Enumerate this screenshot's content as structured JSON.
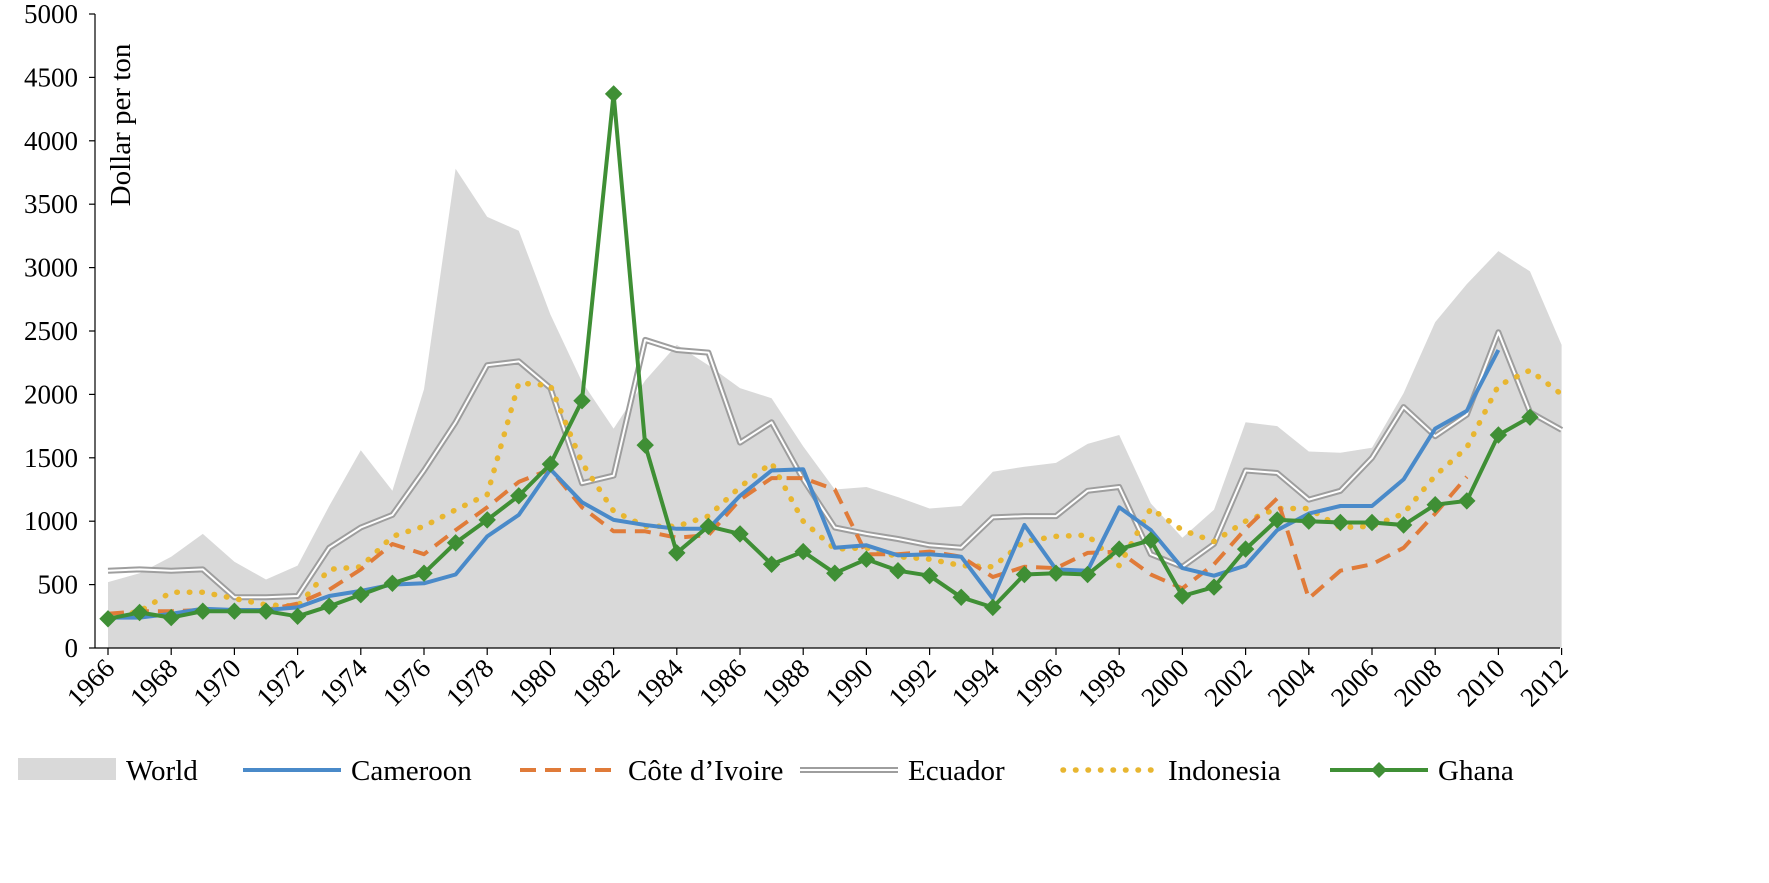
{
  "chart_data": {
    "type": "line",
    "title": "",
    "xlabel": "",
    "ylabel": "Dollar per ton",
    "ylim": [
      0,
      5000
    ],
    "yticks": [
      0,
      500,
      1000,
      1500,
      2000,
      2500,
      3000,
      3500,
      4000,
      4500,
      5000
    ],
    "x": [
      1966,
      1967,
      1968,
      1969,
      1970,
      1971,
      1972,
      1973,
      1974,
      1975,
      1976,
      1977,
      1978,
      1979,
      1980,
      1981,
      1982,
      1983,
      1984,
      1985,
      1986,
      1987,
      1988,
      1989,
      1990,
      1991,
      1992,
      1993,
      1994,
      1995,
      1996,
      1997,
      1998,
      1999,
      2000,
      2001,
      2002,
      2003,
      2004,
      2005,
      2006,
      2007,
      2008,
      2009,
      2010,
      2011,
      2012
    ],
    "xticks": [
      1966,
      1968,
      1970,
      1972,
      1974,
      1976,
      1978,
      1980,
      1982,
      1984,
      1986,
      1988,
      1990,
      1992,
      1994,
      1996,
      1998,
      2000,
      2002,
      2004,
      2006,
      2008,
      2010,
      2012
    ],
    "grid": false,
    "legend_position": "bottom",
    "series": [
      {
        "name": "World",
        "style": "area",
        "color": "#d9d9d9",
        "values": [
          520,
          590,
          720,
          900,
          680,
          540,
          650,
          1120,
          1560,
          1240,
          2040,
          3780,
          3400,
          3290,
          2630,
          2100,
          1730,
          2110,
          2390,
          2230,
          2050,
          1970,
          1590,
          1250,
          1270,
          1190,
          1100,
          1120,
          1390,
          1430,
          1460,
          1610,
          1680,
          1140,
          870,
          1090,
          1780,
          1750,
          1550,
          1540,
          1580,
          2010,
          2570,
          2870,
          3130,
          2970,
          2390
        ]
      },
      {
        "name": "Cameroon",
        "style": "solid",
        "color": "#4a8ac9",
        "values": [
          240,
          240,
          270,
          310,
          300,
          300,
          320,
          410,
          450,
          500,
          510,
          580,
          880,
          1050,
          1410,
          1150,
          1010,
          970,
          940,
          940,
          1200,
          1400,
          1410,
          790,
          810,
          730,
          740,
          720,
          390,
          970,
          620,
          610,
          1110,
          930,
          630,
          570,
          650,
          930,
          1060,
          1120,
          1120,
          1330,
          1730,
          1870,
          2350,
          null,
          null
        ]
      },
      {
        "name": "Côte d’Ivoire",
        "style": "dashed",
        "color": "#e07b39",
        "values": [
          270,
          290,
          290,
          300,
          290,
          300,
          350,
          460,
          620,
          820,
          740,
          930,
          1110,
          1310,
          1410,
          1110,
          920,
          920,
          870,
          890,
          1170,
          1340,
          1340,
          1250,
          740,
          740,
          760,
          720,
          560,
          640,
          630,
          750,
          760,
          580,
          470,
          660,
          940,
          1180,
          390,
          610,
          660,
          790,
          1060,
          1350,
          null,
          null,
          null
        ]
      },
      {
        "name": "Ecuador",
        "style": "double",
        "color": "#9e9e9e",
        "values": [
          610,
          620,
          610,
          620,
          400,
          400,
          410,
          790,
          950,
          1050,
          1400,
          1780,
          2230,
          2260,
          2050,
          1300,
          1360,
          2430,
          2350,
          2330,
          1620,
          1780,
          1330,
          950,
          900,
          860,
          810,
          790,
          1030,
          1040,
          1040,
          1240,
          1270,
          740,
          640,
          820,
          1400,
          1380,
          1170,
          1240,
          1500,
          1900,
          1670,
          1840,
          2490,
          1860,
          1720
        ]
      },
      {
        "name": "Indonesia",
        "style": "dotted",
        "color": "#e8b630",
        "values": [
          230,
          290,
          440,
          440,
          390,
          340,
          330,
          620,
          640,
          880,
          960,
          1090,
          1210,
          2090,
          2070,
          1460,
          1080,
          960,
          960,
          1040,
          1270,
          1460,
          1000,
          780,
          790,
          720,
          700,
          650,
          640,
          840,
          880,
          890,
          650,
          1100,
          930,
          840,
          1000,
          1100,
          1100,
          950,
          960,
          1060,
          1360,
          1580,
          2070,
          2190,
          2000
        ]
      },
      {
        "name": "Ghana",
        "style": "diamond",
        "color": "#3f8f35",
        "values": [
          230,
          280,
          240,
          290,
          290,
          290,
          250,
          330,
          420,
          510,
          590,
          830,
          1010,
          1200,
          1450,
          1950,
          4370,
          1600,
          750,
          960,
          900,
          660,
          760,
          590,
          700,
          610,
          570,
          400,
          320,
          580,
          590,
          580,
          780,
          850,
          410,
          480,
          780,
          1010,
          1000,
          990,
          990,
          970,
          1130,
          1160,
          1680,
          1820,
          null
        ]
      }
    ]
  }
}
